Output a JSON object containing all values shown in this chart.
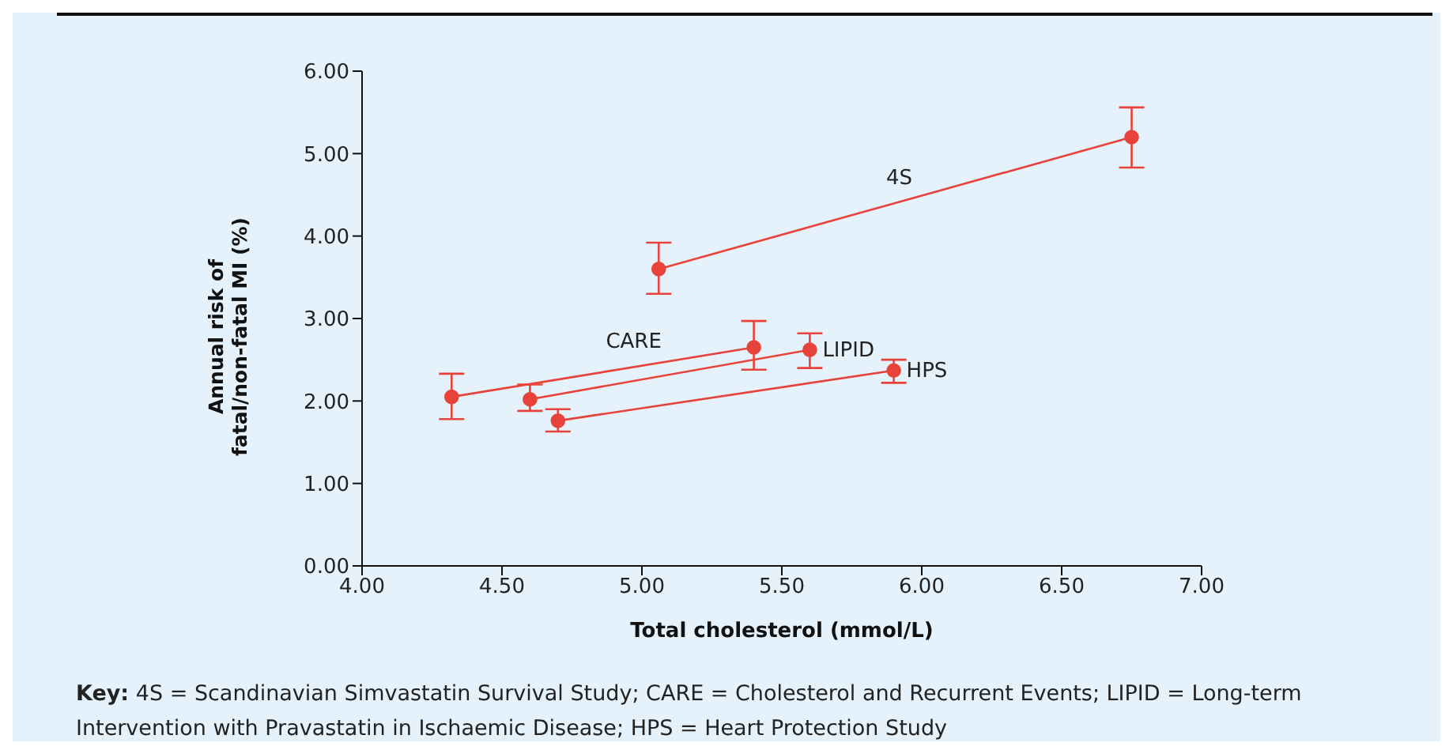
{
  "chart_data": {
    "type": "line",
    "xlabel": "Total cholesterol (mmol/L)",
    "ylabel": "Annual risk of fatal/non-fatal MI (%)",
    "xlim": [
      4,
      7
    ],
    "xticks": [
      {
        "value": 4,
        "label": "4.00"
      },
      {
        "value": 4.5,
        "label": "4.50"
      },
      {
        "value": 5,
        "label": "5.00"
      },
      {
        "value": 5.5,
        "label": "5.50"
      },
      {
        "value": 6,
        "label": "6.00"
      },
      {
        "value": 6.5,
        "label": "6.50"
      },
      {
        "value": 7,
        "label": "7.00"
      }
    ],
    "ylim": [
      0,
      6
    ],
    "yticks": [
      {
        "value": 0,
        "label": "0.00"
      },
      {
        "value": 1,
        "label": "1.00"
      },
      {
        "value": 2,
        "label": "2.00"
      },
      {
        "value": 3,
        "label": "3.00"
      },
      {
        "value": 4,
        "label": "4.00"
      },
      {
        "value": 5,
        "label": "5.00"
      },
      {
        "value": 6,
        "label": "6.00"
      }
    ],
    "marker": "circle",
    "line_style": "solid",
    "series": [
      {
        "name": "4S",
        "color": "#e8433a",
        "x": [
          5.06,
          6.75
        ],
        "values": [
          3.6,
          5.2
        ],
        "errors": [
          [
            3.3,
            3.92
          ],
          [
            4.83,
            5.56
          ]
        ]
      },
      {
        "name": "CARE",
        "color": "#e8433a",
        "x": [
          4.32,
          5.4
        ],
        "values": [
          2.05,
          2.65
        ],
        "errors": [
          [
            1.78,
            2.33
          ],
          [
            2.38,
            2.97
          ]
        ]
      },
      {
        "name": "LIPID",
        "color": "#e8433a",
        "x": [
          4.6,
          5.6
        ],
        "values": [
          2.02,
          2.62
        ],
        "errors": [
          [
            1.88,
            2.2
          ],
          [
            2.4,
            2.82
          ]
        ]
      },
      {
        "name": "HPS",
        "color": "#e8433a",
        "x": [
          4.7,
          5.9
        ],
        "values": [
          1.76,
          2.37
        ],
        "errors": [
          [
            1.63,
            1.9
          ],
          [
            2.22,
            2.5
          ]
        ]
      }
    ],
    "annotations": [
      "Key: 4S = Scandinavian Simvastatin Survival Study; CARE = Cholesterol and Recurrent Events; LIPID = Long-term Intervention with Pravastatin in Ischaemic Disease; HPS = Heart Protection Study"
    ]
  }
}
